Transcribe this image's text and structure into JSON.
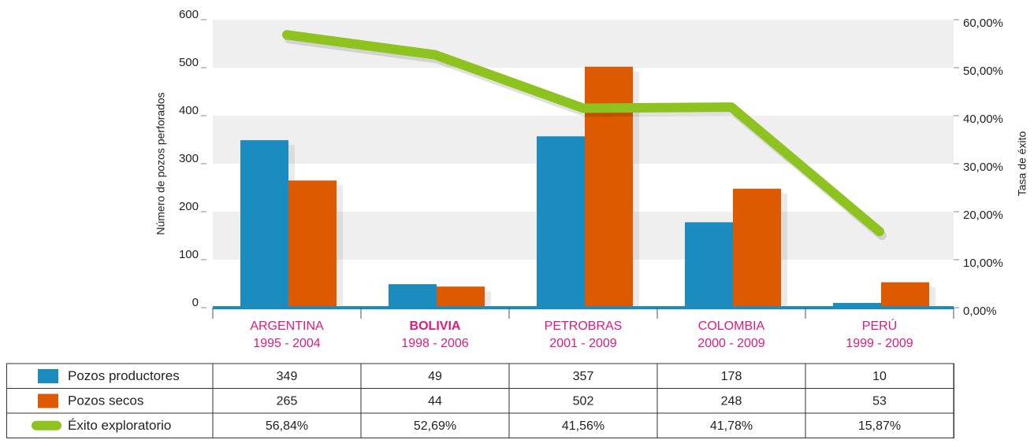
{
  "chart_data": {
    "type": "bar",
    "ylabel": "Número de pozos perforados",
    "y2label": "Tasa de éxito",
    "categories": [
      "ARGENTINA",
      "BOLIVIA",
      "PETROBRAS",
      "COLOMBIA",
      "PERÚ"
    ],
    "periods": [
      "1995 - 2004",
      "1998 - 2006",
      "2001 - 2009",
      "2000 - 2009",
      "1999 - 2009"
    ],
    "series": [
      {
        "name": "Pozos productores",
        "color": "#1a8cc0",
        "type": "bar",
        "values": [
          349,
          49,
          357,
          178,
          10
        ]
      },
      {
        "name": "Pozos secos",
        "color": "#de5a00",
        "type": "bar",
        "values": [
          265,
          44,
          502,
          248,
          53
        ]
      },
      {
        "name": "Éxito exploratorio",
        "color": "#8dc21f",
        "type": "line",
        "axis": "y2",
        "values": [
          56.84,
          52.69,
          41.56,
          41.78,
          15.87
        ],
        "value_labels": [
          "56,84%",
          "52,69%",
          "41,56%",
          "41,78%",
          "15,87%"
        ]
      }
    ],
    "ylim": [
      0,
      600
    ],
    "yticks": [
      0,
      100,
      200,
      300,
      400,
      500,
      600
    ],
    "y2lim": [
      0,
      60
    ],
    "y2ticks": [
      {
        "value": 0,
        "label": "0,00%"
      },
      {
        "value": 10,
        "label": "10,00%"
      },
      {
        "value": 20,
        "label": "20,00%"
      },
      {
        "value": 30,
        "label": "30,00%"
      },
      {
        "value": 40,
        "label": "40,00%"
      },
      {
        "value": 50,
        "label": "50,00%"
      },
      {
        "value": 60,
        "label": "60,00%"
      }
    ],
    "grid": true
  }
}
